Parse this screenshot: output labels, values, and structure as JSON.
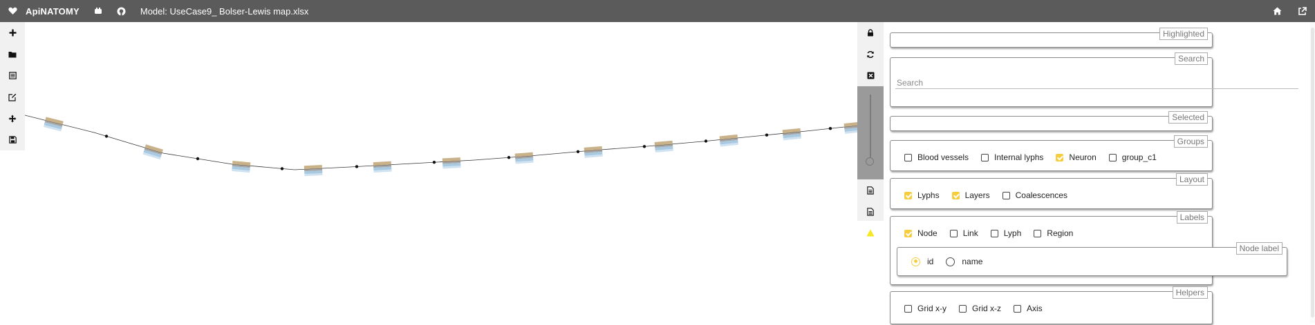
{
  "topbar": {
    "logo_icon": "heart-icon",
    "app_name": "ApiNATOMY",
    "model_label": "Model: UseCase9_ Bolser-Lewis map.xlsx",
    "icons": [
      "youtube-icon",
      "github-icon"
    ],
    "right_icons": [
      "home-icon",
      "external-link-icon"
    ]
  },
  "left_toolbar": {
    "tools": [
      "plus-icon",
      "folder-icon",
      "table-icon",
      "edit-icon",
      "move-icon",
      "save-icon"
    ]
  },
  "graph_controls": {
    "tools": [
      "lock-icon",
      "refresh-icon",
      "close-box-icon"
    ],
    "lower_tools": [
      "document-icon",
      "document-icon",
      "warning-icon"
    ],
    "slider_level": 0.0
  },
  "panel": {
    "highlighted": {
      "legend": "Highlighted"
    },
    "search": {
      "legend": "Search",
      "placeholder": "Search",
      "value": ""
    },
    "selected": {
      "legend": "Selected"
    },
    "groups": {
      "legend": "Groups",
      "items": [
        {
          "label": "Blood vessels",
          "checked": false
        },
        {
          "label": "Internal lyphs",
          "checked": false
        },
        {
          "label": "Neuron",
          "checked": true
        },
        {
          "label": "group_c1",
          "checked": false
        }
      ]
    },
    "layout": {
      "legend": "Layout",
      "items": [
        {
          "label": "Lyphs",
          "checked": true
        },
        {
          "label": "Layers",
          "checked": true
        },
        {
          "label": "Coalescences",
          "checked": false
        }
      ]
    },
    "labels": {
      "legend": "Labels",
      "items": [
        {
          "label": "Node",
          "checked": true
        },
        {
          "label": "Link",
          "checked": false
        },
        {
          "label": "Lyph",
          "checked": false
        },
        {
          "label": "Region",
          "checked": false
        }
      ],
      "node_label": {
        "legend": "Node label",
        "options": [
          {
            "label": "id",
            "selected": true
          },
          {
            "label": "name",
            "selected": false
          }
        ]
      }
    },
    "helpers": {
      "legend": "Helpers",
      "items": [
        {
          "label": "Grid x-y",
          "checked": false
        },
        {
          "label": "Grid x-z",
          "checked": false
        },
        {
          "label": "Axis",
          "checked": false
        }
      ]
    }
  },
  "colors": {
    "topbar": "#5b5b5b",
    "accent": "#f7cd3e",
    "lyph_outer": "#c9b28a",
    "lyph_inner": "#a8c9e0"
  }
}
